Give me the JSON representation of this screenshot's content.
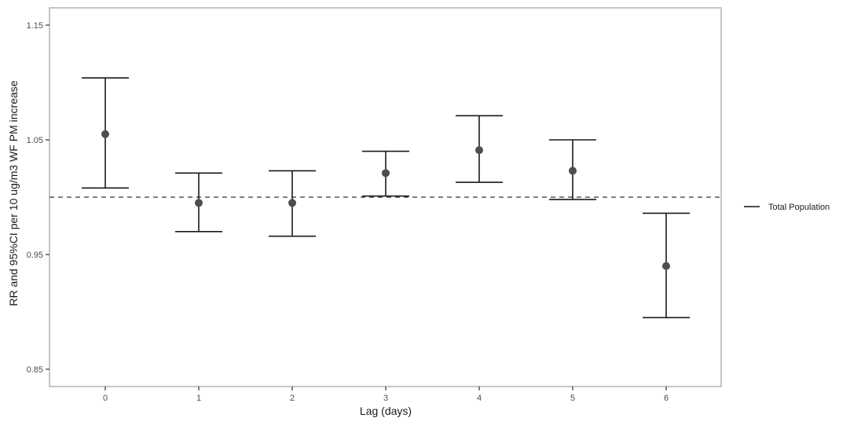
{
  "chart_data": {
    "type": "errorbar",
    "title": "",
    "xlabel": "Lag (days)",
    "ylabel": "RR and 95%CI per 10 ug/m3 WF PM increase",
    "categories": [
      "0",
      "1",
      "2",
      "3",
      "4",
      "5",
      "6"
    ],
    "series": [
      {
        "name": "Total Population",
        "color": "#4d4d4d",
        "estimate": [
          1.055,
          0.995,
          0.995,
          1.021,
          1.041,
          1.023,
          0.94
        ],
        "lower": [
          1.008,
          0.97,
          0.966,
          1.001,
          1.013,
          0.998,
          0.895
        ],
        "upper": [
          1.104,
          1.021,
          1.023,
          1.04,
          1.071,
          1.05,
          0.986
        ]
      }
    ],
    "ylim": [
      0.835,
      1.165
    ],
    "yticks": [
      0.85,
      0.95,
      1.05,
      1.15
    ],
    "ytick_labels": [
      "0.85",
      "0.95",
      "1.05",
      "1.15"
    ],
    "reference_line": {
      "y": 1.0,
      "style": "dashed"
    },
    "grid": false,
    "legend_position": "right"
  },
  "legend": {
    "items": [
      {
        "label": "Total Population"
      }
    ]
  }
}
